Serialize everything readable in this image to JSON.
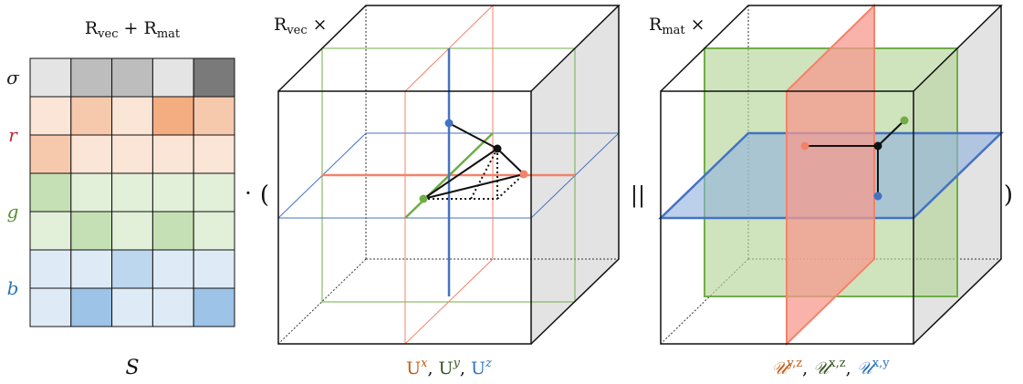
{
  "matrix": {
    "title_a": "R",
    "title_a_sub": "vec",
    "title_plus": " + ",
    "title_b": "R",
    "title_b_sub": "mat",
    "caption": "S",
    "rows": [
      {
        "label": "σ",
        "label_color": "#222222",
        "cells": [
          "#e4e4e4",
          "#bdbdbd",
          "#bdbdbd",
          "#e4e4e4",
          "#7a7a7a"
        ]
      },
      {
        "label": "r",
        "label_color": "#c0282b",
        "cells": [
          "#fbe5d6",
          "#f6c9ad",
          "#fbe5d6",
          "#f3ad80",
          "#f6c9ad"
        ]
      },
      {
        "label": "",
        "label_color": "#c0282b",
        "cells": [
          "#f6c9ad",
          "#fbe5d6",
          "#fbe5d6",
          "#fbe5d6",
          "#fbe5d6"
        ]
      },
      {
        "label": "g",
        "label_color": "#5a8f2c",
        "cells": [
          "#c5e0b4",
          "#e2efd9",
          "#e2efd9",
          "#e2efd9",
          "#e2efd9"
        ]
      },
      {
        "label": "",
        "label_color": "#5a8f2c",
        "cells": [
          "#e2efd9",
          "#c5e0b4",
          "#e2efd9",
          "#c5e0b4",
          "#e2efd9"
        ]
      },
      {
        "label": "b",
        "label_color": "#2e75b6",
        "cells": [
          "#deebf7",
          "#deebf7",
          "#bdd7ee",
          "#deebf7",
          "#deebf7"
        ]
      },
      {
        "label": "",
        "label_color": "#2e75b6",
        "cells": [
          "#deebf7",
          "#9dc3e6",
          "#deebf7",
          "#deebf7",
          "#9dc3e6"
        ]
      }
    ]
  },
  "operators": {
    "dot": "·",
    "open_paren": "(",
    "concat": "||",
    "close_paren": ")"
  },
  "vec_cube": {
    "title": "R",
    "title_sub": "vec",
    "title_op": " ×",
    "caption": [
      {
        "base": "U",
        "sup": "x",
        "color": "#c55a11",
        "sep": ", "
      },
      {
        "base": "U",
        "sup": "y",
        "color": "#375623",
        "sep": ", "
      },
      {
        "base": "U",
        "sup": "z",
        "color": "#2e75b6",
        "sep": ""
      }
    ]
  },
  "mat_cube": {
    "title": "R",
    "title_sub": "mat",
    "title_op": " ×",
    "caption": [
      {
        "base": "𝒰",
        "sup": "y,z",
        "color": "#c55a11",
        "sep": ", "
      },
      {
        "base": "𝒰",
        "sup": "x,z",
        "color": "#375623",
        "sep": ", "
      },
      {
        "base": "𝒰",
        "sup": "x,y",
        "color": "#2e75b6",
        "sep": ""
      }
    ]
  },
  "colors": {
    "red_axis": "#f4826a",
    "green_axis": "#70ad47",
    "blue_axis": "#4472c4",
    "cube_side": "#e3e3e3",
    "red_plane": "#f79a8e",
    "green_plane": "#b5d69a",
    "blue_plane": "#8fb0dd"
  }
}
